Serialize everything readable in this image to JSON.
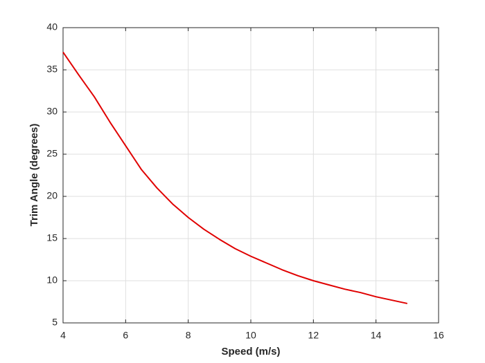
{
  "chart_data": {
    "type": "line",
    "x_label": "Speed (m/s)",
    "y_label": "Trim Angle (degrees)",
    "x": [
      4,
      4.5,
      5,
      5.5,
      6,
      6.5,
      7,
      7.5,
      8,
      8.5,
      9,
      9.5,
      10,
      10.5,
      11,
      11.5,
      12,
      12.5,
      13,
      13.5,
      14,
      14.5,
      15
    ],
    "series": [
      {
        "color": "#e00000",
        "values": [
          37.1,
          34.4,
          31.8,
          28.8,
          26.0,
          23.2,
          21.0,
          19.1,
          17.5,
          16.1,
          14.9,
          13.8,
          12.9,
          12.1,
          11.3,
          10.6,
          10.0,
          9.5,
          9.0,
          8.6,
          8.1,
          7.7,
          7.3
        ]
      }
    ],
    "xlim": [
      4,
      16
    ],
    "xticks": [
      4,
      6,
      8,
      10,
      12,
      14,
      16
    ],
    "ylim": [
      5,
      40
    ],
    "yticks": [
      5,
      10,
      15,
      20,
      25,
      30,
      35,
      40
    ],
    "grid": true
  }
}
